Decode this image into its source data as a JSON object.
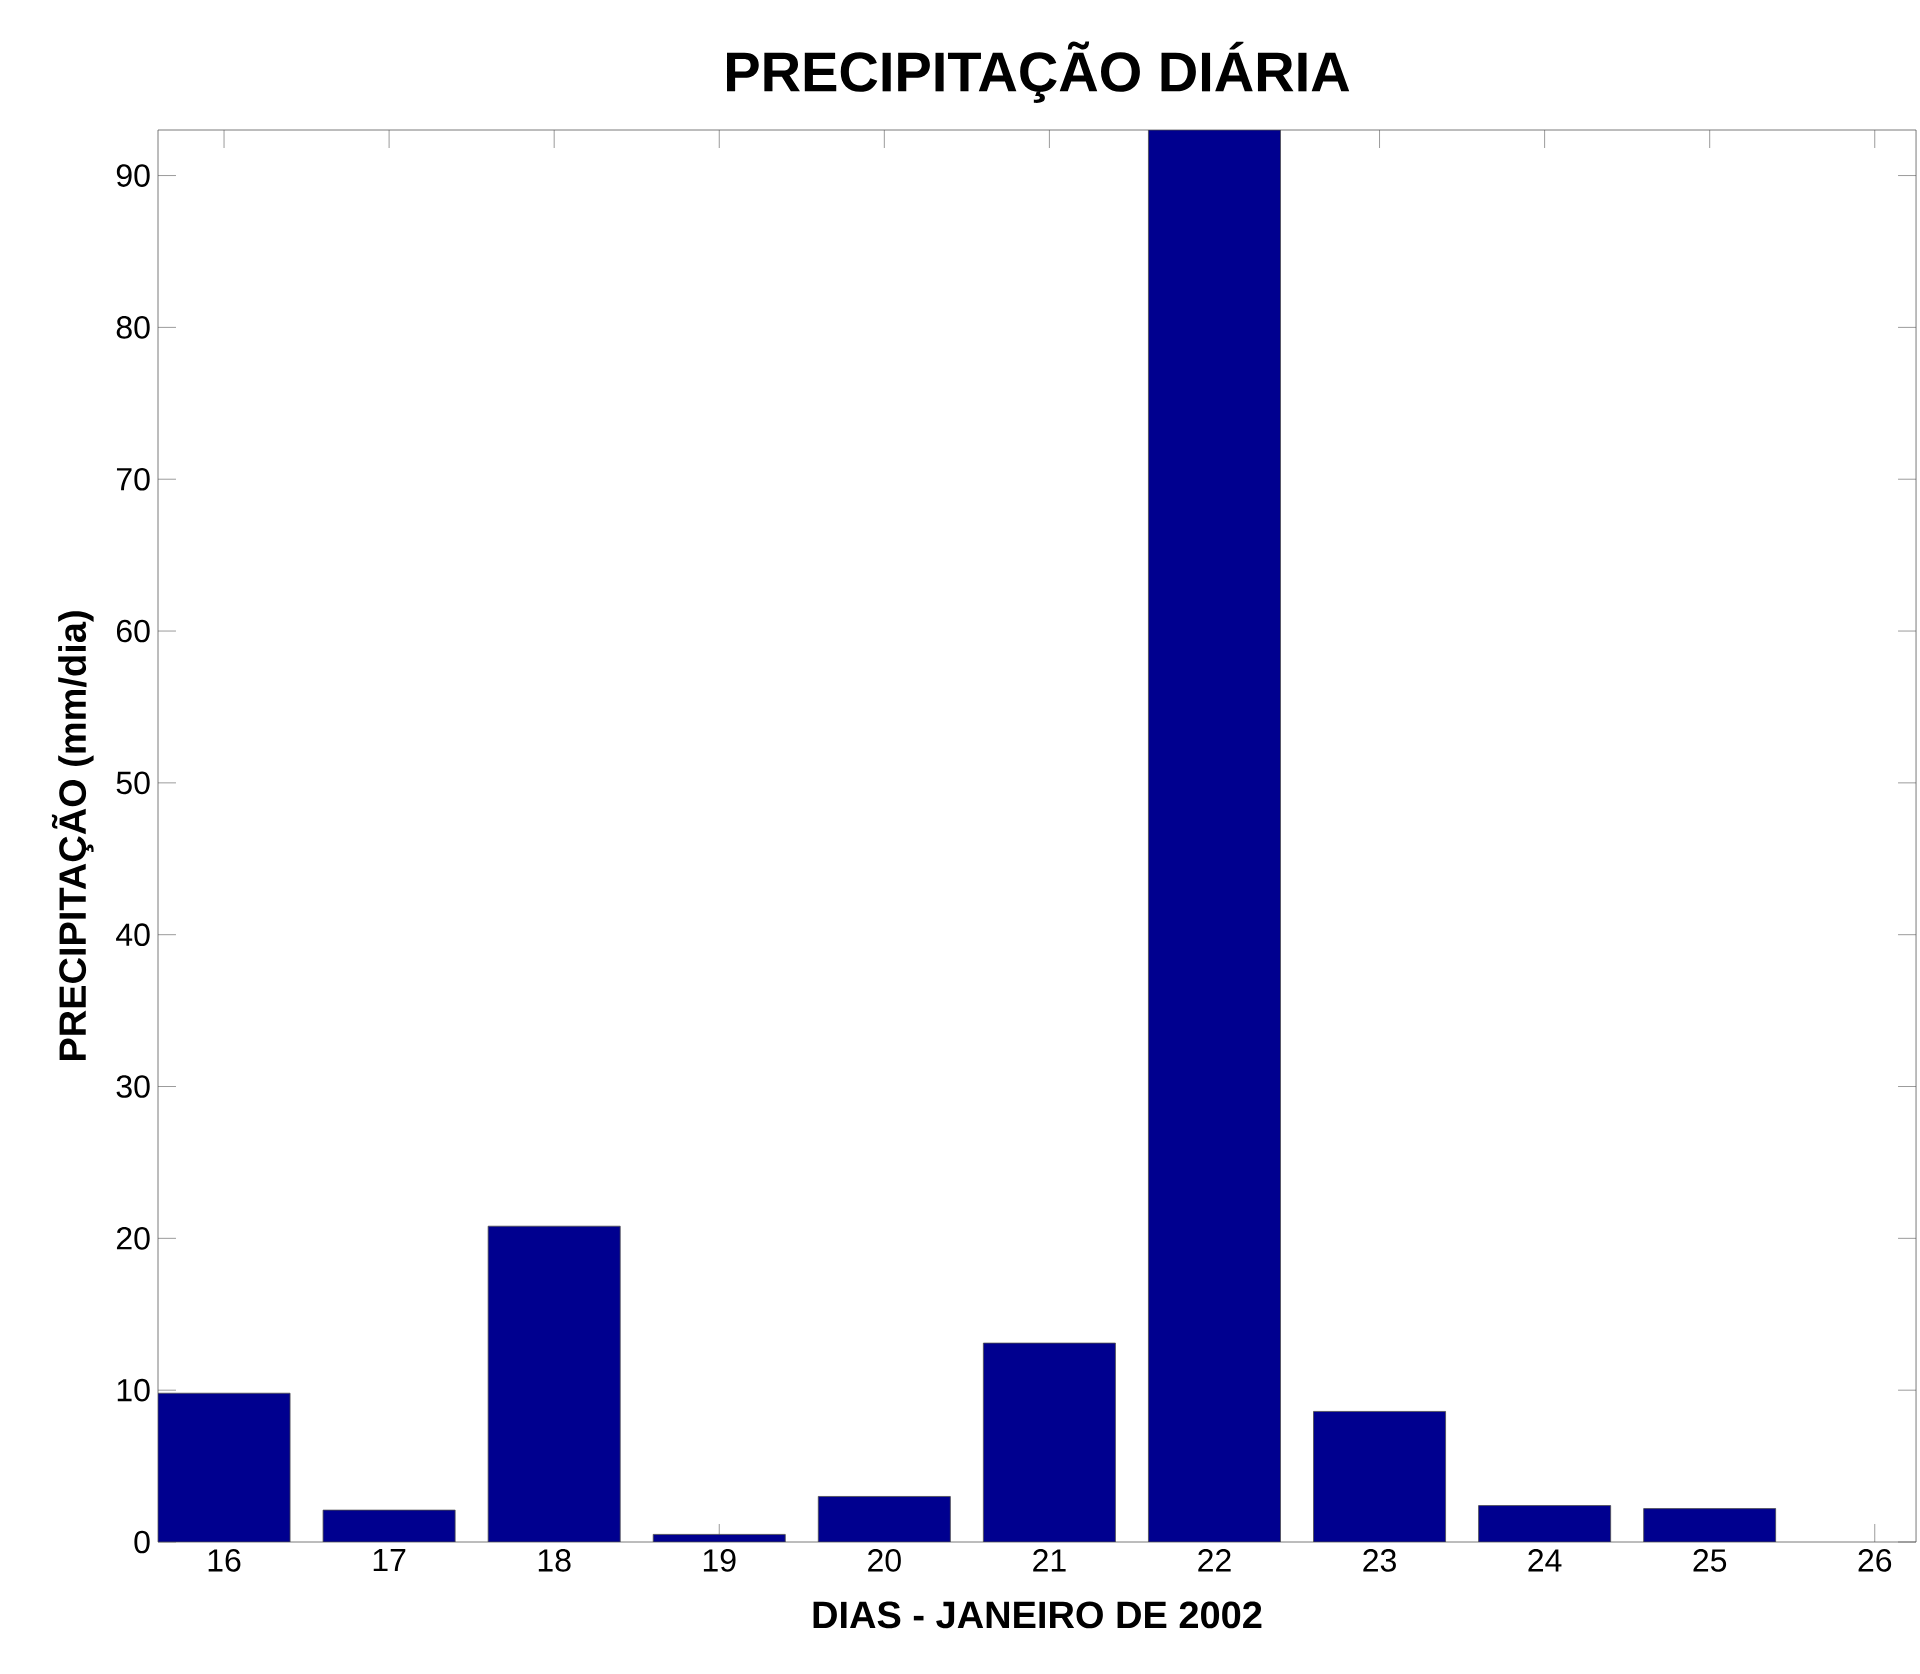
{
  "chart_data": {
    "type": "bar",
    "title": "PRECIPITAÇÃO DIÁRIA",
    "xlabel": "DIAS - JANEIRO DE 2002",
    "ylabel": "PRECIPITAÇÃO (mm/dia)",
    "x": [
      16,
      17,
      18,
      19,
      20,
      21,
      22,
      23,
      24,
      25
    ],
    "values": [
      9.8,
      2.1,
      20.8,
      0.5,
      3.0,
      13.1,
      93,
      8.6,
      2.4,
      2.2
    ],
    "color": "#00008f",
    "xlim": [
      15.6,
      26.25
    ],
    "ylim": [
      0,
      93
    ],
    "xticks": [
      16,
      17,
      18,
      19,
      20,
      21,
      22,
      23,
      24,
      25,
      26
    ],
    "yticks": [
      0,
      10,
      20,
      30,
      40,
      50,
      60,
      70,
      80,
      90
    ],
    "grid": false
  }
}
